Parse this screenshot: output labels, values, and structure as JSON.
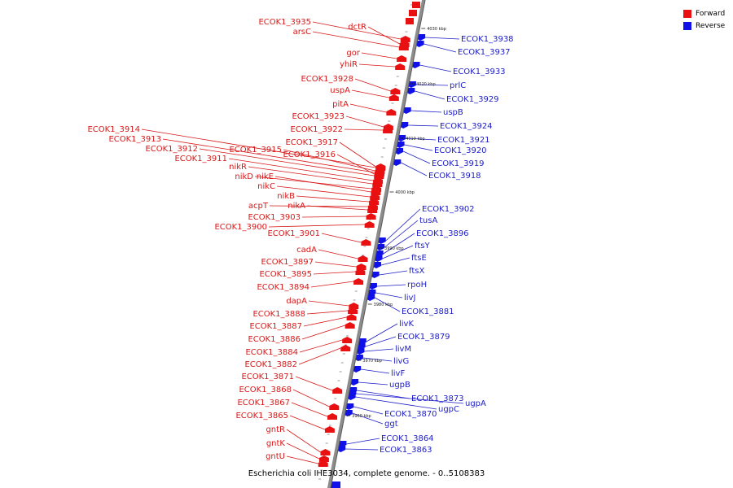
{
  "caption": "Escherichia coli IHE3034, complete genome. - 0..5108383",
  "legend": [
    {
      "label": "Forward",
      "color": "#e81010"
    },
    {
      "label": "Reverse",
      "color": "#1010e8"
    }
  ],
  "colors": {
    "forward": "#e81010",
    "reverse": "#1010e8",
    "axis": "#8c8c8c"
  },
  "tick_labels": [
    "4030 kbp",
    "4020 kbp",
    "4010 kbp",
    "4000 kbp",
    "3990 kbp",
    "3980 kbp",
    "3970 kbp",
    "3960 kbp"
  ],
  "forward_genes": [
    "ECOK1_3935",
    "dctR",
    "arsC",
    "gor",
    "yhiR",
    "ECOK1_3928",
    "uspA",
    "pitA",
    "ECOK1_3923",
    "ECOK1_3922",
    "ECOK1_3914",
    "ECOK1_3913",
    "ECOK1_3912",
    "ECOK1_3911",
    "ECOK1_3917",
    "ECOK1_3915",
    "ECOK1_3916",
    "nikR",
    "nikD",
    "nikE",
    "nikC",
    "nikB",
    "acpT",
    "nikA",
    "ECOK1_3903",
    "ECOK1_3900",
    "ECOK1_3901",
    "cadA",
    "ECOK1_3897",
    "ECOK1_3895",
    "ECOK1_3894",
    "dapA",
    "ECOK1_3888",
    "ECOK1_3887",
    "ECOK1_3886",
    "ECOK1_3884",
    "ECOK1_3882",
    "ECOK1_3871",
    "ECOK1_3868",
    "ECOK1_3867",
    "ECOK1_3865",
    "gntR",
    "gntK",
    "gntU"
  ],
  "reverse_genes": [
    "ECOK1_3938",
    "ECOK1_3937",
    "ECOK1_3933",
    "prlC",
    "ECOK1_3929",
    "uspB",
    "ECOK1_3924",
    "ECOK1_3921",
    "ECOK1_3920",
    "ECOK1_3919",
    "ECOK1_3918",
    "ECOK1_3902",
    "tusA",
    "ECOK1_3896",
    "ftsY",
    "ftsE",
    "ftsX",
    "rpoH",
    "livJ",
    "ECOK1_3881",
    "livK",
    "ECOK1_3879",
    "livM",
    "livG",
    "livF",
    "ugpB",
    "ECOK1_3873",
    "ugpA",
    "ugpC",
    "ECOK1_3870",
    "ggt",
    "ECOK1_3864",
    "ECOK1_3863"
  ]
}
